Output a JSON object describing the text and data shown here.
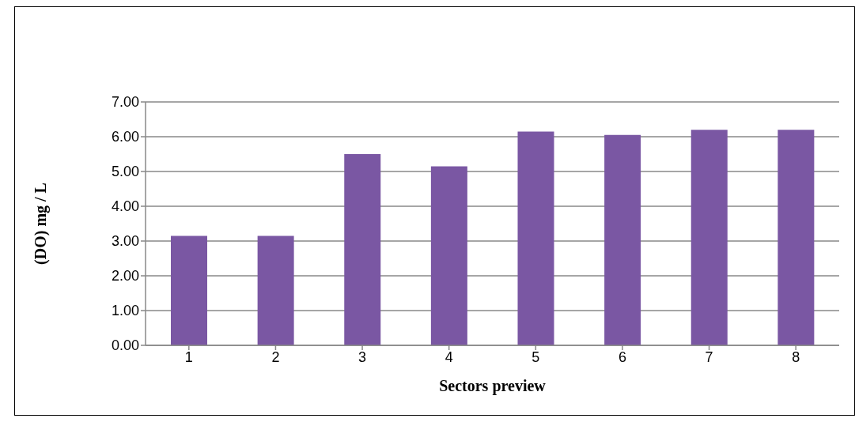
{
  "chart_data": {
    "type": "bar",
    "xlabel": "Sectors preview",
    "ylabel": "(DO) mg / L",
    "categories": [
      "1",
      "2",
      "3",
      "4",
      "5",
      "6",
      "7",
      "8"
    ],
    "values": [
      3.15,
      3.15,
      5.5,
      5.15,
      6.15,
      6.05,
      6.2,
      6.2
    ],
    "color": "#7a57a3",
    "ylim": [
      0,
      7
    ],
    "yticks": [
      {
        "value": 0,
        "label": "0.00"
      },
      {
        "value": 1,
        "label": "1.00"
      },
      {
        "value": 2,
        "label": "2.00"
      },
      {
        "value": 3,
        "label": "3.00"
      },
      {
        "value": 4,
        "label": "4.00"
      },
      {
        "value": 5,
        "label": "5.00"
      },
      {
        "value": 6,
        "label": "6.00"
      },
      {
        "value": 7,
        "label": "7.00"
      }
    ],
    "grid": "y",
    "legend": false
  }
}
